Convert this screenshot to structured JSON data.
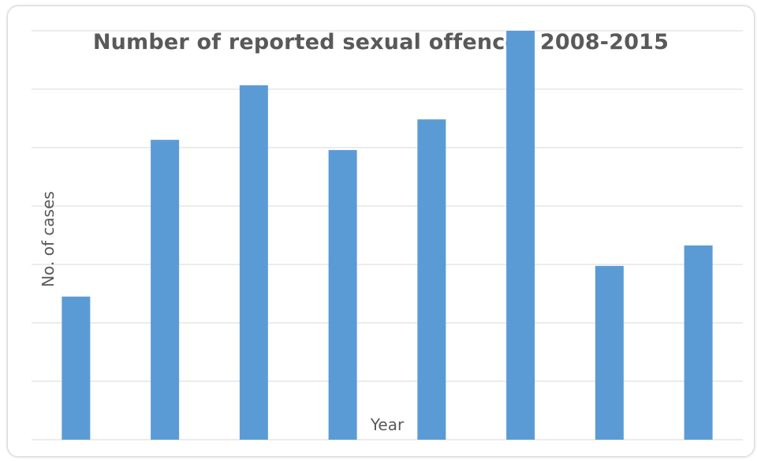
{
  "chart_data": {
    "type": "bar",
    "title": "Number of reported sexual offences 2008-2015",
    "xlabel": "Year",
    "ylabel": "No. of cases",
    "y_tick_labels_shown": false,
    "x_tick_labels_shown": false,
    "ylim": [
      0,
      600
    ],
    "grid": true,
    "legend": "none",
    "bar_color": "#5B9BD5",
    "gridline_color": "#d9d9d9",
    "values": [
      210,
      440,
      520,
      425,
      470,
      600,
      255,
      285
    ]
  }
}
